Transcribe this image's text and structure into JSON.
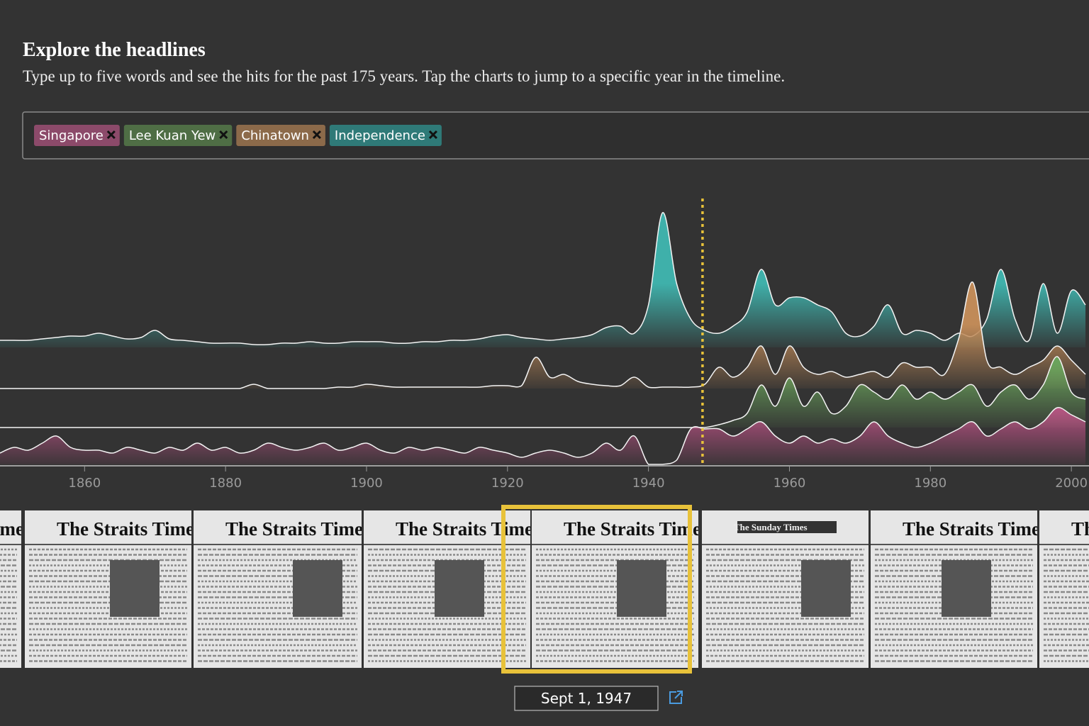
{
  "header": {
    "title": "Explore the headlines",
    "subtitle": "Type up to five words and see the hits for the past 175 years. Tap the charts to jump to a specific year in the timeline."
  },
  "chart_data": {
    "type": "ridgeline",
    "x": [
      1848,
      1850,
      1852,
      1854,
      1856,
      1858,
      1860,
      1862,
      1864,
      1866,
      1868,
      1870,
      1872,
      1874,
      1876,
      1878,
      1880,
      1882,
      1884,
      1886,
      1888,
      1890,
      1892,
      1894,
      1896,
      1898,
      1900,
      1902,
      1904,
      1906,
      1908,
      1910,
      1912,
      1914,
      1916,
      1918,
      1920,
      1922,
      1924,
      1926,
      1928,
      1930,
      1932,
      1934,
      1936,
      1938,
      1940,
      1942,
      1944,
      1946,
      1948,
      1950,
      1952,
      1954,
      1956,
      1958,
      1960,
      1962,
      1964,
      1966,
      1968,
      1970,
      1972,
      1974,
      1976,
      1978,
      1980,
      1982,
      1984,
      1986,
      1988,
      1990,
      1992,
      1994,
      1996,
      1998,
      2000,
      2002
    ],
    "xlim": [
      1848,
      2002.5
    ],
    "xticks": [
      1860,
      1880,
      1900,
      1920,
      1940,
      1960,
      1980,
      2000
    ],
    "marker": 1947.67,
    "series": [
      {
        "name": "Singapore",
        "color": "#c4548a",
        "tag_color": "#8c4a6a",
        "values": [
          8,
          12,
          10,
          15,
          20,
          12,
          10,
          10,
          8,
          12,
          10,
          8,
          12,
          10,
          15,
          10,
          12,
          8,
          10,
          15,
          12,
          10,
          12,
          15,
          10,
          12,
          15,
          10,
          8,
          12,
          10,
          12,
          10,
          8,
          12,
          10,
          8,
          5,
          8,
          10,
          8,
          5,
          8,
          15,
          10,
          20,
          0,
          0,
          3,
          25,
          25,
          25,
          20,
          25,
          30,
          20,
          15,
          20,
          15,
          18,
          15,
          20,
          30,
          20,
          15,
          12,
          15,
          20,
          25,
          30,
          20,
          25,
          30,
          25,
          30,
          40,
          35,
          30
        ]
      },
      {
        "name": "Lee Kuan Yew",
        "color": "#6aa35c",
        "tag_color": "#4f6e45",
        "values": [
          0,
          0,
          0,
          0,
          0,
          0,
          0,
          0,
          0,
          0,
          0,
          0,
          0,
          0,
          0,
          0,
          0,
          0,
          0,
          0,
          0,
          0,
          0,
          0,
          0,
          0,
          0,
          0,
          0,
          0,
          0,
          0,
          0,
          0,
          0,
          0,
          0,
          0,
          0,
          0,
          0,
          0,
          0,
          0,
          0,
          0,
          0,
          0,
          0,
          0,
          0,
          2,
          5,
          10,
          30,
          15,
          35,
          15,
          25,
          10,
          15,
          30,
          25,
          20,
          30,
          20,
          25,
          20,
          25,
          30,
          15,
          25,
          30,
          20,
          30,
          50,
          25,
          20
        ]
      },
      {
        "name": "Chinatown",
        "color": "#c08a58",
        "tag_color": "#8c6a4a",
        "values": [
          0,
          0,
          0,
          0,
          0,
          0,
          0,
          0,
          0,
          0,
          0,
          0,
          0,
          0,
          0,
          0,
          0,
          0,
          3,
          0,
          0,
          0,
          0,
          0,
          1,
          1,
          3,
          2,
          1,
          1,
          1,
          1,
          1,
          1,
          1,
          2,
          2,
          2,
          22,
          8,
          10,
          5,
          3,
          2,
          2,
          8,
          1,
          1,
          1,
          1,
          3,
          15,
          8,
          15,
          30,
          10,
          30,
          15,
          10,
          12,
          8,
          10,
          12,
          8,
          18,
          15,
          15,
          10,
          35,
          75,
          20,
          15,
          10,
          15,
          20,
          30,
          20,
          10
        ]
      },
      {
        "name": "Independence",
        "color": "#3fb0aa",
        "tag_color": "#2f7a78",
        "values": [
          5,
          5,
          5,
          6,
          7,
          8,
          8,
          10,
          8,
          6,
          7,
          12,
          6,
          5,
          4,
          3,
          3,
          3,
          2,
          2,
          3,
          3,
          4,
          3,
          3,
          4,
          4,
          4,
          3,
          3,
          4,
          4,
          5,
          5,
          6,
          8,
          9,
          7,
          6,
          5,
          6,
          7,
          9,
          14,
          15,
          10,
          30,
          95,
          45,
          20,
          12,
          10,
          15,
          25,
          55,
          30,
          35,
          35,
          30,
          25,
          10,
          8,
          15,
          30,
          10,
          12,
          10,
          5,
          10,
          8,
          20,
          55,
          20,
          5,
          45,
          10,
          40,
          30
        ]
      }
    ]
  },
  "timeline": {
    "mastheads": [
      "The Straits Times",
      "The Straits Times",
      "The Straits Times",
      "The Straits Times",
      "The Straits Times",
      "The Sunday Times",
      "The Straits Times",
      "The Straits Times"
    ],
    "selected_date": "Sept 1, 1947"
  }
}
